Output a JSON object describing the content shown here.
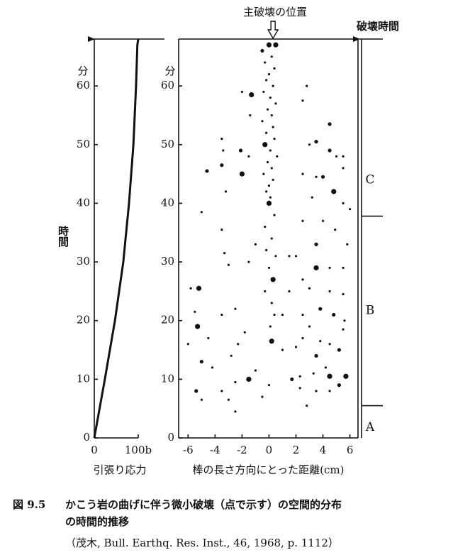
{
  "chart_data": [
    {
      "type": "line",
      "y_unit": "分",
      "y_label": "時間",
      "x_label": "引張り応力",
      "x": [
        0,
        24,
        47,
        66,
        79,
        89,
        95,
        98,
        100
      ],
      "values": [
        0,
        10,
        20,
        30,
        40,
        50,
        60,
        67,
        68
      ],
      "color": "#111111",
      "xlim": [
        0,
        100
      ],
      "ylim": [
        0,
        68
      ],
      "xticks": [
        0,
        {
          "value": 100,
          "label": "100b"
        }
      ],
      "yticks": [
        0,
        10,
        20,
        30,
        40,
        50,
        60
      ],
      "failure_time": 68
    },
    {
      "type": "scatter",
      "y_unit": "分",
      "x_label": "棒の長さ方向にとった距離(cm)",
      "annotation": "主破壊の位置",
      "main_fracture_x": 0.3,
      "failure_label": "破壊時間",
      "failure_time": 68,
      "stages": [
        {
          "label": "A",
          "from": 0,
          "to": 5.5
        },
        {
          "label": "B",
          "from": 5.5,
          "to": 37.8
        },
        {
          "label": "C",
          "from": 37.8,
          "to": 68
        }
      ],
      "color": "#111111",
      "x": [
        0,
        0.5,
        -0.5,
        0.2,
        -0.3,
        0.4,
        0,
        -0.2,
        0.3,
        -0.4,
        0.1,
        0.5,
        -0.1,
        0.2,
        -0.5,
        0.3,
        -0.2,
        0.4,
        -0.3,
        0.1,
        0.6,
        -0.1,
        0.2,
        -0.4,
        0.3,
        0,
        -0.2,
        0.1,
        0,
        0.4,
        -0.3,
        0.2,
        -0.2,
        0.5,
        0,
        0.3,
        -0.3,
        0.2,
        0.4,
        0.1,
        0.2,
        -1.3,
        -2,
        -1.4,
        -3.5,
        -3.4,
        -2.1,
        -4.6,
        -3.5,
        -3.2,
        -2,
        -1.5,
        -5,
        -3.5,
        -3.3,
        -3,
        -1.5,
        -1,
        -5.8,
        -5.2,
        -5.5,
        -5.3,
        -6,
        -4.5,
        -3.5,
        -2.5,
        -2.3,
        -1.8,
        -5,
        -4.2,
        -5.4,
        -5,
        -3.5,
        -3,
        -2.5,
        -2.5,
        -1.5,
        -0.5,
        -1,
        0,
        -2.8,
        2.8,
        2.5,
        4.5,
        5,
        5.5,
        3,
        4.5,
        3.5,
        2.5,
        3.5,
        4,
        5.5,
        3.2,
        4.8,
        5.5,
        6,
        2.5,
        4,
        4.9,
        3.5,
        5.8,
        2,
        3.5,
        4.5,
        5.5,
        2.5,
        3,
        4.5,
        5.5,
        3.8,
        2.5,
        4.8,
        5.6,
        3,
        5.5,
        2.5,
        3.8,
        4.5,
        5.2,
        2,
        3.5,
        4.2,
        2.3,
        3.3,
        4.5,
        5.7,
        1.7,
        2.3,
        3.5,
        4.5,
        5.2,
        2.8,
        1.5,
        1,
        1,
        1.5
      ],
      "values": [
        67,
        67,
        66,
        65,
        64,
        63,
        62,
        61,
        60,
        59,
        58,
        57,
        56,
        55,
        54,
        53,
        52,
        51,
        50,
        49,
        48,
        47,
        46,
        45,
        44,
        43,
        42,
        41,
        40,
        38,
        36,
        34,
        32,
        31,
        29,
        27,
        25,
        23,
        21,
        19,
        16.5,
        58.5,
        59,
        55,
        51,
        49,
        49,
        45.5,
        46.5,
        42,
        45,
        48,
        38.5,
        35.5,
        31.5,
        29.5,
        30,
        33,
        25.5,
        25.5,
        21.5,
        19,
        16,
        17,
        21,
        22,
        16,
        18,
        13,
        12,
        8,
        6.5,
        8,
        6.5,
        4.5,
        9.5,
        10,
        7,
        11.5,
        9,
        14,
        60,
        57.5,
        53.5,
        48,
        48,
        50,
        49,
        50.5,
        45,
        44.5,
        44.5,
        46,
        41,
        42,
        40,
        39,
        37,
        37,
        35.5,
        33,
        33,
        31,
        29,
        29,
        29,
        27,
        25.5,
        25,
        24.5,
        22,
        21,
        21,
        20,
        19,
        18.5,
        17,
        16.5,
        16,
        15,
        15.5,
        14,
        12,
        10.5,
        11,
        10.5,
        10.5,
        10,
        8.5,
        8,
        8,
        9,
        5.5,
        31,
        21,
        15,
        25
      ],
      "sizes": [
        3,
        3,
        2,
        1,
        1,
        1,
        1,
        1,
        1,
        1,
        1,
        1,
        1,
        1,
        1,
        1,
        1,
        1,
        3,
        1,
        1,
        1,
        1,
        1,
        1,
        1,
        1,
        1,
        3,
        1,
        1,
        1,
        1,
        1,
        1,
        3,
        1,
        1,
        1,
        1,
        3,
        3,
        1,
        1,
        1,
        1,
        2,
        2,
        2,
        1,
        3,
        1,
        1,
        1,
        1,
        1,
        1,
        1,
        1,
        3,
        1,
        3,
        1,
        1,
        1,
        1,
        1,
        1,
        2,
        1,
        2,
        1,
        1,
        1,
        1,
        1,
        3,
        1,
        1,
        1,
        1,
        1,
        1,
        2,
        1,
        1,
        1,
        2,
        2,
        1,
        1,
        2,
        1,
        1,
        3,
        1,
        1,
        1,
        1,
        1,
        2,
        1,
        1,
        3,
        1,
        1,
        1,
        1,
        1,
        1,
        2,
        1,
        2,
        1,
        1,
        1,
        1,
        1,
        1,
        2,
        1,
        2,
        1,
        1,
        1,
        3,
        3,
        2,
        1,
        1,
        1,
        2,
        1,
        1,
        1,
        1,
        1
      ],
      "xlim": [
        -6.7,
        6.6
      ],
      "ylim": [
        0,
        68
      ],
      "xticks": [
        -6,
        -4,
        -2,
        0,
        2,
        4,
        6
      ],
      "yticks": [
        0,
        10,
        20,
        30,
        40,
        50,
        60
      ]
    }
  ],
  "caption": {
    "figure_label": "図 9.5",
    "lines": [
      "かこう岩の曲げに伴う微小破壊（点で示す）の空間的分布",
      "の時間的推移"
    ],
    "source": "（茂木, Bull. Earthq. Res. Inst., 46, 1968, p. 1112）"
  }
}
